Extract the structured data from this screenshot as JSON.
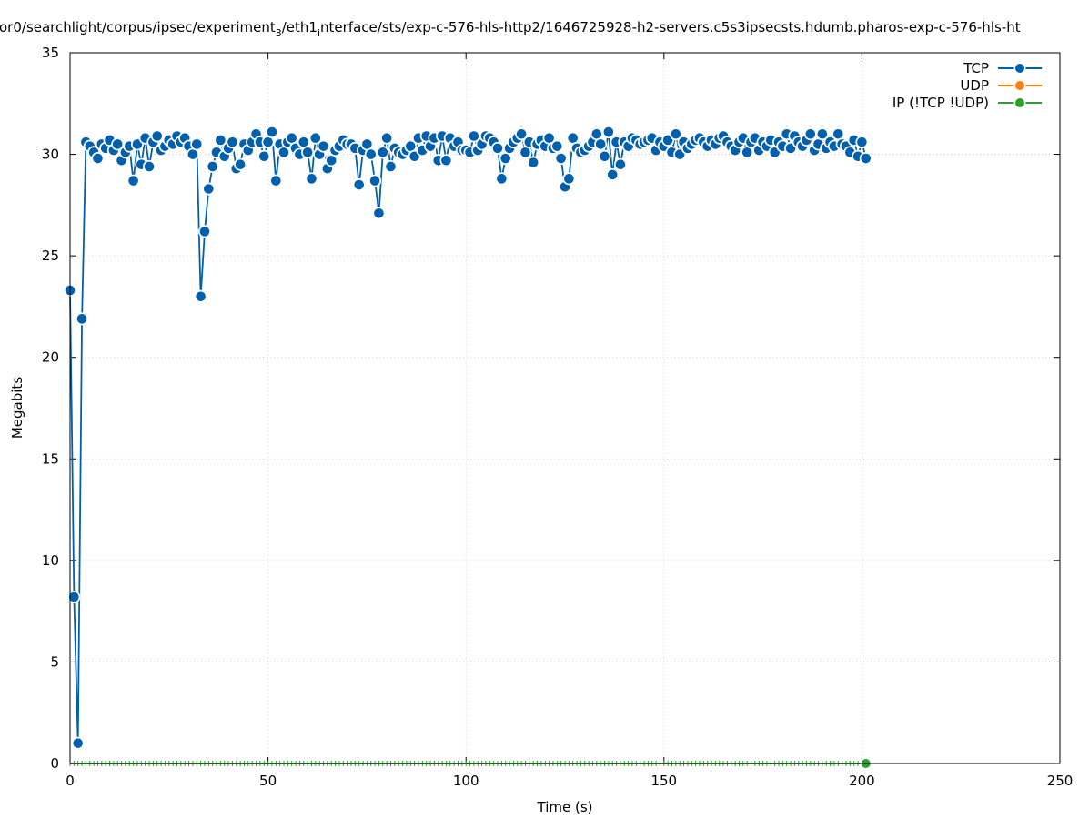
{
  "chart_data": {
    "type": "line",
    "title_lead": "or0/searchlight/corpus/ipsec/experiment",
    "title_sub1": "3",
    "title_mid": "/eth1",
    "title_sub2": "i",
    "title_tail": "nterface/sts/exp-c-576-hls-http2/1646725928-h2-servers.c5s3ipsecsts.hdumb.pharos-exp-c-576-hls-ht",
    "xlabel": "Time (s)",
    "ylabel": "Megabits",
    "xlim": [
      0,
      250
    ],
    "ylim": [
      0,
      35
    ],
    "xticks": [
      "0",
      "50",
      "100",
      "150",
      "200",
      "250"
    ],
    "yticks": [
      "0",
      "5",
      "10",
      "15",
      "20",
      "25",
      "30",
      "35"
    ],
    "grid": true,
    "legend_position": "top-right",
    "colors": {
      "TCP": "#0060ad",
      "UDP": "#ff7f0e",
      "IP": "#2ca02c"
    },
    "series": [
      {
        "name": "TCP",
        "x": [
          0,
          1,
          2,
          3,
          4,
          5,
          6,
          7,
          8,
          9,
          10,
          11,
          12,
          13,
          14,
          15,
          16,
          17,
          18,
          19,
          20,
          21,
          22,
          23,
          24,
          25,
          26,
          27,
          28,
          29,
          30,
          31,
          32,
          33,
          34,
          35,
          36,
          37,
          38,
          39,
          40,
          41,
          42,
          43,
          44,
          45,
          46,
          47,
          48,
          49,
          50,
          51,
          52,
          53,
          54,
          55,
          56,
          57,
          58,
          59,
          60,
          61,
          62,
          63,
          64,
          65,
          66,
          67,
          68,
          69,
          70,
          71,
          72,
          73,
          74,
          75,
          76,
          77,
          78,
          79,
          80,
          81,
          82,
          83,
          84,
          85,
          86,
          87,
          88,
          89,
          90,
          91,
          92,
          93,
          94,
          95,
          96,
          97,
          98,
          99,
          100,
          101,
          102,
          103,
          104,
          105,
          106,
          107,
          108,
          109,
          110,
          111,
          112,
          113,
          114,
          115,
          116,
          117,
          118,
          119,
          120,
          121,
          122,
          123,
          124,
          125,
          126,
          127,
          128,
          129,
          130,
          131,
          132,
          133,
          134,
          135,
          136,
          137,
          138,
          139,
          140,
          141,
          142,
          143,
          144,
          145,
          146,
          147,
          148,
          149,
          150,
          151,
          152,
          153,
          154,
          155,
          156,
          157,
          158,
          159,
          160,
          161,
          162,
          163,
          164,
          165,
          166,
          167,
          168,
          169,
          170,
          171,
          172,
          173,
          174,
          175,
          176,
          177,
          178,
          179,
          180,
          181,
          182,
          183,
          184,
          185,
          186,
          187,
          188,
          189,
          190,
          191,
          192,
          193,
          194,
          195,
          196,
          197,
          198,
          199,
          200,
          201
        ],
        "values": [
          23.3,
          8.2,
          1.0,
          21.9,
          30.6,
          30.4,
          30.1,
          29.8,
          30.5,
          30.3,
          30.7,
          30.2,
          30.5,
          29.7,
          30.1,
          30.4,
          28.7,
          30.5,
          29.5,
          30.8,
          29.4,
          30.6,
          30.9,
          30.2,
          30.4,
          30.7,
          30.5,
          30.9,
          30.6,
          30.8,
          30.4,
          30.0,
          30.5,
          23.0,
          26.2,
          28.3,
          29.4,
          30.1,
          30.7,
          29.9,
          30.3,
          30.6,
          29.3,
          29.5,
          30.5,
          30.2,
          30.6,
          31.0,
          30.6,
          29.9,
          30.6,
          31.1,
          28.7,
          30.5,
          30.1,
          30.6,
          30.8,
          30.3,
          30.0,
          30.6,
          30.1,
          28.8,
          30.8,
          30.0,
          30.4,
          29.3,
          29.7,
          30.2,
          30.4,
          30.7,
          30.5,
          30.5,
          30.3,
          28.5,
          30.2,
          30.5,
          30.0,
          28.7,
          27.1,
          30.1,
          30.8,
          29.4,
          30.3,
          30.1,
          30.0,
          30.2,
          30.4,
          29.9,
          30.8,
          30.2,
          30.9,
          30.4,
          30.8,
          29.7,
          30.9,
          29.7,
          30.8,
          30.4,
          30.6,
          30.2,
          30.2,
          30.1,
          30.9,
          30.2,
          30.5,
          30.9,
          30.8,
          30.6,
          30.3,
          28.8,
          29.8,
          30.3,
          30.6,
          30.8,
          31.0,
          30.1,
          30.6,
          29.6,
          30.5,
          30.7,
          30.4,
          30.8,
          30.3,
          30.4,
          29.8,
          28.4,
          28.8,
          30.8,
          30.3,
          30.1,
          30.2,
          30.4,
          30.6,
          31.0,
          30.5,
          29.9,
          31.1,
          29.0,
          30.6,
          29.5,
          30.6,
          30.4,
          30.8,
          30.7,
          30.5,
          30.6,
          30.7,
          30.8,
          30.2,
          30.6,
          30.4,
          30.7,
          30.1,
          31.0,
          30.0,
          30.6,
          30.3,
          30.5,
          30.7,
          30.8,
          30.6,
          30.4,
          30.7,
          30.5,
          30.8,
          30.9,
          30.6,
          30.4,
          30.2,
          30.6,
          30.8,
          30.1,
          30.6,
          30.8,
          30.2,
          30.6,
          30.4,
          30.7,
          30.1,
          30.6,
          30.4,
          31.0,
          30.3,
          30.9,
          30.6,
          30.4,
          30.7,
          31.0,
          30.2,
          30.5,
          31.0,
          30.3,
          30.6,
          30.4,
          31.0,
          30.5,
          30.4,
          30.1,
          30.7,
          29.9,
          30.6,
          29.8
        ]
      },
      {
        "name": "UDP",
        "x": [],
        "values": []
      },
      {
        "name": "IP (!TCP  !UDP)",
        "x": [
          0,
          1,
          2,
          3,
          4,
          5,
          6,
          7,
          8,
          9,
          10,
          11,
          12,
          13,
          14,
          15,
          16,
          17,
          18,
          19,
          20,
          21,
          22,
          23,
          24,
          25,
          26,
          27,
          28,
          29,
          30,
          31,
          32,
          33,
          34,
          35,
          36,
          37,
          38,
          39,
          40,
          41,
          42,
          43,
          44,
          45,
          46,
          47,
          48,
          49,
          50,
          51,
          52,
          53,
          54,
          55,
          56,
          57,
          58,
          59,
          60,
          61,
          62,
          63,
          64,
          65,
          66,
          67,
          68,
          69,
          70,
          71,
          72,
          73,
          74,
          75,
          76,
          77,
          78,
          79,
          80,
          81,
          82,
          83,
          84,
          85,
          86,
          87,
          88,
          89,
          90,
          91,
          92,
          93,
          94,
          95,
          96,
          97,
          98,
          99,
          100,
          101,
          102,
          103,
          104,
          105,
          106,
          107,
          108,
          109,
          110,
          111,
          112,
          113,
          114,
          115,
          116,
          117,
          118,
          119,
          120,
          121,
          122,
          123,
          124,
          125,
          126,
          127,
          128,
          129,
          130,
          131,
          132,
          133,
          134,
          135,
          136,
          137,
          138,
          139,
          140,
          141,
          142,
          143,
          144,
          145,
          146,
          147,
          148,
          149,
          150,
          151,
          152,
          153,
          154,
          155,
          156,
          157,
          158,
          159,
          160,
          161,
          162,
          163,
          164,
          165,
          166,
          167,
          168,
          169,
          170,
          171,
          172,
          173,
          174,
          175,
          176,
          177,
          178,
          179,
          180,
          181,
          182,
          183,
          184,
          185,
          186,
          187,
          188,
          189,
          190,
          191,
          192,
          193,
          194,
          195,
          196,
          197,
          198,
          199,
          200,
          201
        ],
        "values": [
          0,
          0,
          0,
          0,
          0,
          0,
          0,
          0,
          0,
          0,
          0,
          0,
          0,
          0,
          0,
          0,
          0,
          0,
          0,
          0,
          0,
          0,
          0,
          0,
          0,
          0,
          0,
          0,
          0,
          0,
          0,
          0,
          0,
          0,
          0,
          0,
          0,
          0,
          0,
          0,
          0,
          0,
          0,
          0,
          0,
          0,
          0,
          0,
          0,
          0,
          0,
          0,
          0,
          0,
          0,
          0,
          0,
          0,
          0,
          0,
          0,
          0,
          0,
          0,
          0,
          0,
          0,
          0,
          0,
          0,
          0,
          0,
          0,
          0,
          0,
          0,
          0,
          0,
          0,
          0,
          0,
          0,
          0,
          0,
          0,
          0,
          0,
          0,
          0,
          0,
          0,
          0,
          0,
          0,
          0,
          0,
          0,
          0,
          0,
          0,
          0,
          0,
          0,
          0,
          0,
          0,
          0,
          0,
          0,
          0,
          0,
          0,
          0,
          0,
          0,
          0,
          0,
          0,
          0,
          0,
          0,
          0,
          0,
          0,
          0,
          0,
          0,
          0,
          0,
          0,
          0,
          0,
          0,
          0,
          0,
          0,
          0,
          0,
          0,
          0,
          0,
          0,
          0,
          0,
          0,
          0,
          0,
          0,
          0,
          0,
          0,
          0,
          0,
          0,
          0,
          0,
          0,
          0,
          0,
          0,
          0,
          0,
          0,
          0,
          0,
          0,
          0,
          0,
          0,
          0,
          0,
          0,
          0,
          0,
          0,
          0,
          0,
          0,
          0,
          0,
          0,
          0,
          0,
          0,
          0,
          0,
          0,
          0,
          0,
          0,
          0,
          0,
          0,
          0,
          0,
          0,
          0,
          0,
          0,
          0,
          0,
          0
        ]
      }
    ]
  }
}
